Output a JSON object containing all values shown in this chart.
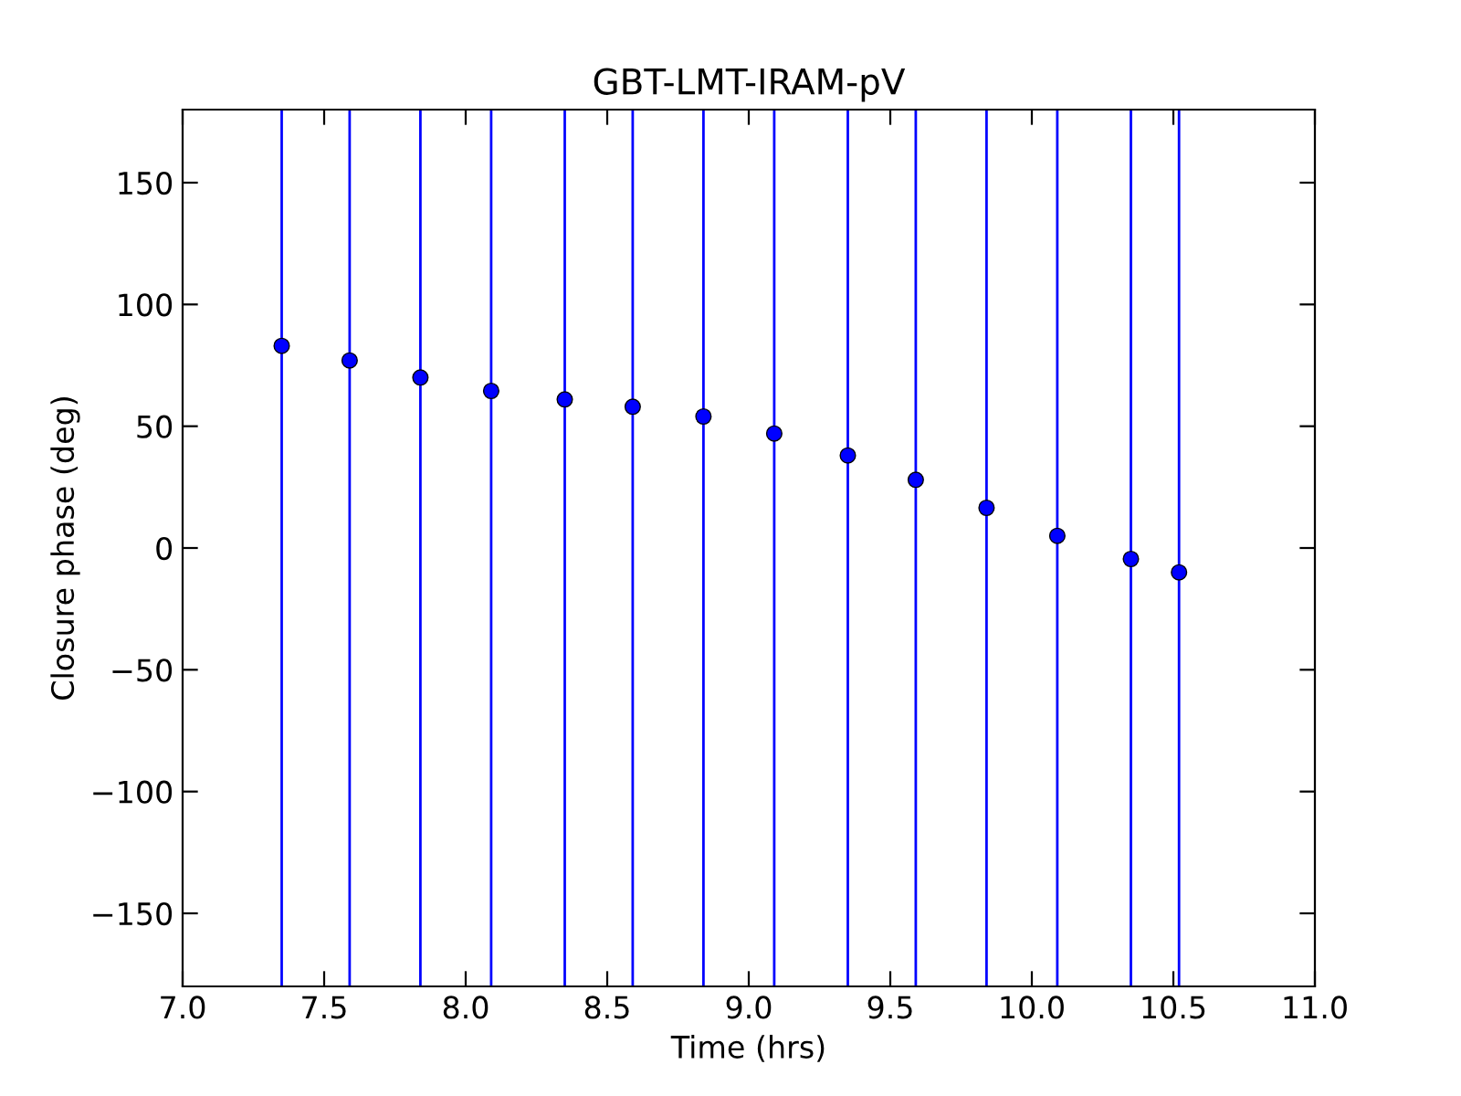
{
  "chart_data": {
    "type": "scatter",
    "title": "GBT-LMT-IRAM-pV",
    "xlabel": "Time (hrs)",
    "ylabel": "Closure phase (deg)",
    "x": [
      7.35,
      7.59,
      7.84,
      8.09,
      8.35,
      8.59,
      8.84,
      9.09,
      9.35,
      9.59,
      9.84,
      10.09,
      10.35,
      10.52
    ],
    "series": [
      {
        "color": "#0000ff",
        "values": [
          83,
          77,
          70,
          64.5,
          61,
          58,
          54,
          47,
          38,
          28,
          16.5,
          5,
          -4.5,
          -10
        ],
        "errors": [
          [
            -180,
            180
          ],
          [
            -180,
            180
          ],
          [
            -180,
            180
          ],
          [
            -180,
            180
          ],
          [
            -180,
            180
          ],
          [
            -180,
            180
          ],
          [
            -180,
            180
          ],
          [
            -180,
            180
          ],
          [
            -180,
            180
          ],
          [
            -180,
            180
          ],
          [
            -180,
            180
          ],
          [
            -180,
            180
          ],
          [
            -180,
            180
          ],
          [
            -180,
            180
          ]
        ]
      }
    ],
    "xlim": [
      7.0,
      11.0
    ],
    "ylim": [
      -180,
      180
    ],
    "xticks": [
      {
        "value": 7,
        "label": "7.0"
      },
      7.5,
      {
        "value": 8,
        "label": "8.0"
      },
      8.5,
      {
        "value": 9,
        "label": "9.0"
      },
      9.5,
      {
        "value": 10,
        "label": "10.0"
      },
      10.5,
      {
        "value": 11,
        "label": "11.0"
      }
    ],
    "yticks": [
      -150,
      -100,
      -50,
      0,
      50,
      100,
      150
    ],
    "marker": "circle",
    "grid": false,
    "legend": false
  }
}
